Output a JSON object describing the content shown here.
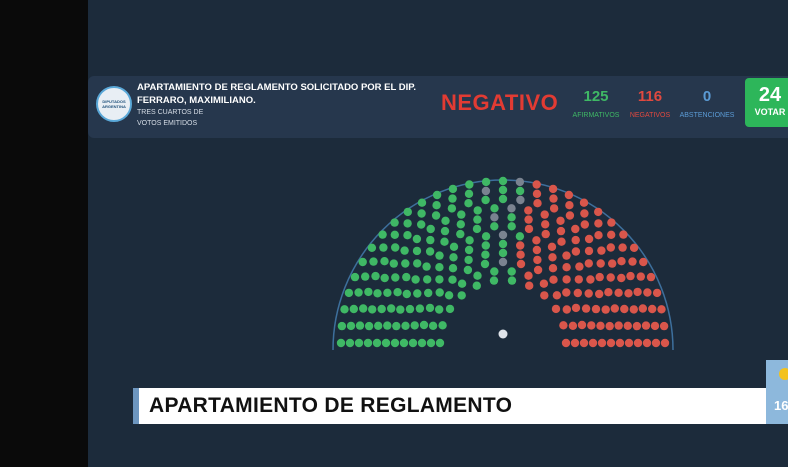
{
  "header": {
    "logo_text": "DIPUTADOS ARGENTINA",
    "title": "APARTAMIENTO DE REGLAMENTO SOLICITADO POR EL DIP. FERRARO, MAXIMILIANO.",
    "subtitle_line1": "TRES CUARTOS DE",
    "subtitle_line2": "VOTOS EMITIDOS",
    "result": "NEGATIVO",
    "afirmativos": "125",
    "afirmativos_label": "AFIRMATIVOS",
    "negativos": "116",
    "negativos_label": "NEGATIVOS",
    "abstenciones": "0",
    "abstenciones_label": "ABSTENCIONES",
    "votantes": "24",
    "votantes_label": "VOTAR"
  },
  "colors": {
    "afirmativo": "#3fb865",
    "negativo": "#d9564b",
    "ausente": "#7a8390",
    "abstencion": "#5b9bd5"
  },
  "hemicycle": {
    "afirmativos": 125,
    "negativos": 116,
    "abstenciones": 0,
    "ausentes": 16
  },
  "lower_third": {
    "headline": "APARTAMIENTO DE REGLAMENTO",
    "clock": "16:"
  }
}
